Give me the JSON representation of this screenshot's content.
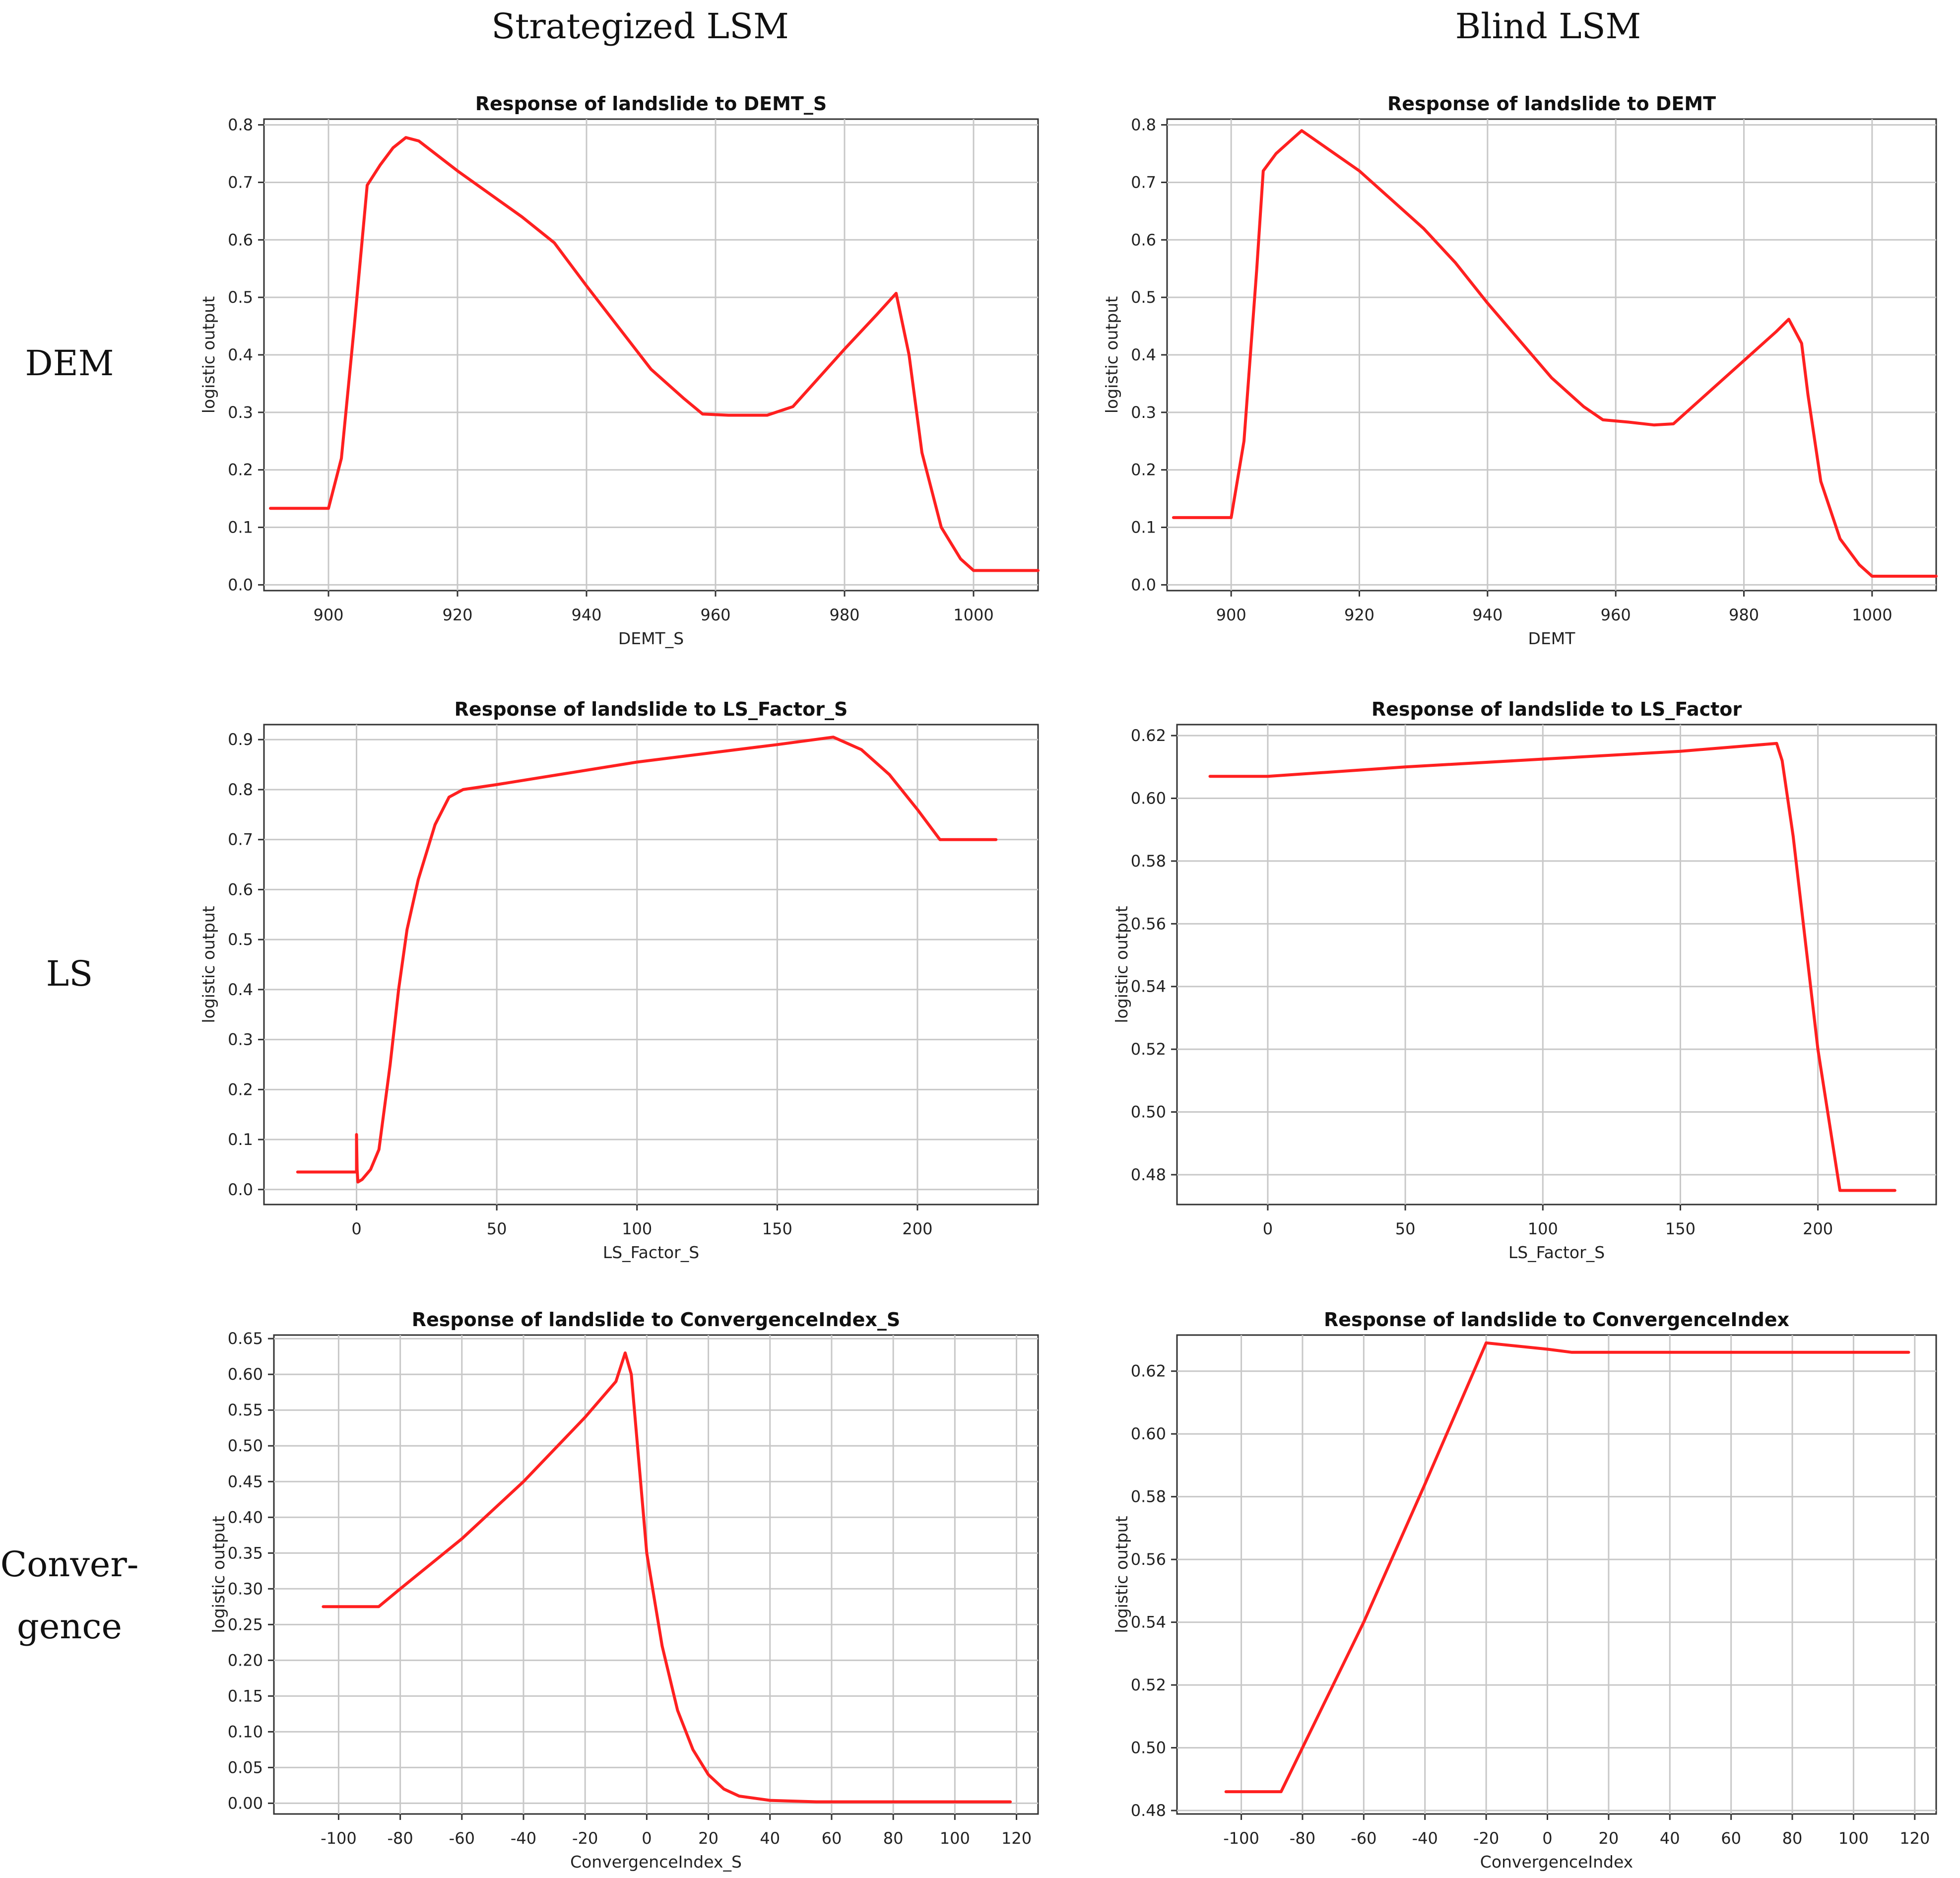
{
  "figure": {
    "column_headers": [
      "Strategized LSM",
      "Blind LSM"
    ],
    "row_labels": [
      "DEM",
      "LS",
      "Conver-\ngence"
    ]
  },
  "style": {
    "line_color": "#ff2020",
    "grid_color": "#c8c8c8",
    "frame_color": "#333333"
  },
  "chart_data": [
    {
      "id": "dem-strategized",
      "type": "line",
      "title": "Response of landslide to DEMT_S",
      "xlabel": "DEMT_S",
      "ylabel": "logistic output",
      "xlim": [
        890,
        1010
      ],
      "ylim": [
        -0.01,
        0.81
      ],
      "xticks": [
        900,
        920,
        940,
        960,
        980,
        1000
      ],
      "yticks": [
        0.0,
        0.1,
        0.2,
        0.3,
        0.4,
        0.5,
        0.6,
        0.7,
        0.8
      ],
      "ytick_decimals": 1,
      "grid": true,
      "series": [
        {
          "name": "response",
          "x": [
            891,
            900,
            902,
            904,
            906,
            908,
            910,
            912,
            914,
            920,
            930,
            935,
            940,
            950,
            955,
            958,
            962,
            968,
            972,
            976,
            980,
            985,
            988,
            990,
            992,
            995,
            998,
            1000,
            1010
          ],
          "y": [
            0.133,
            0.133,
            0.22,
            0.45,
            0.695,
            0.73,
            0.76,
            0.778,
            0.772,
            0.72,
            0.64,
            0.595,
            0.52,
            0.375,
            0.325,
            0.297,
            0.295,
            0.295,
            0.31,
            0.36,
            0.41,
            0.47,
            0.507,
            0.4,
            0.23,
            0.1,
            0.045,
            0.025,
            0.025
          ]
        }
      ]
    },
    {
      "id": "dem-blind",
      "type": "line",
      "title": "Response of landslide to DEMT",
      "xlabel": "DEMT",
      "ylabel": "logistic output",
      "xlim": [
        890,
        1010
      ],
      "ylim": [
        -0.01,
        0.81
      ],
      "xticks": [
        900,
        920,
        940,
        960,
        980,
        1000
      ],
      "yticks": [
        0.0,
        0.1,
        0.2,
        0.3,
        0.4,
        0.5,
        0.6,
        0.7,
        0.8
      ],
      "ytick_decimals": 1,
      "grid": true,
      "series": [
        {
          "name": "response",
          "x": [
            891,
            900,
            902,
            904,
            905,
            907,
            909,
            911,
            920,
            930,
            935,
            940,
            950,
            955,
            958,
            962,
            966,
            969,
            975,
            980,
            985,
            987,
            989,
            990,
            992,
            995,
            998,
            1000,
            1010
          ],
          "y": [
            0.117,
            0.117,
            0.25,
            0.55,
            0.72,
            0.75,
            0.77,
            0.79,
            0.72,
            0.62,
            0.56,
            0.49,
            0.36,
            0.31,
            0.287,
            0.283,
            0.278,
            0.28,
            0.34,
            0.39,
            0.44,
            0.462,
            0.42,
            0.33,
            0.18,
            0.08,
            0.035,
            0.015,
            0.015
          ]
        }
      ]
    },
    {
      "id": "ls-strategized",
      "type": "line",
      "title": "Response of landslide to LS_Factor_S",
      "xlabel": "LS_Factor_S",
      "ylabel": "logistic output",
      "xlim": [
        -33,
        243
      ],
      "ylim": [
        -0.03,
        0.93
      ],
      "xticks": [
        0,
        50,
        100,
        150,
        200
      ],
      "yticks": [
        0.0,
        0.1,
        0.2,
        0.3,
        0.4,
        0.5,
        0.6,
        0.7,
        0.8,
        0.9
      ],
      "ytick_decimals": 1,
      "grid": true,
      "series": [
        {
          "name": "response",
          "x": [
            -21,
            0,
            0,
            0.2,
            0.5,
            2,
            5,
            8,
            12,
            15,
            18,
            22,
            28,
            33,
            38,
            50,
            100,
            150,
            170,
            180,
            190,
            200,
            208,
            228
          ],
          "y": [
            0.035,
            0.035,
            0.11,
            0.04,
            0.015,
            0.02,
            0.04,
            0.08,
            0.25,
            0.4,
            0.52,
            0.62,
            0.73,
            0.785,
            0.8,
            0.81,
            0.855,
            0.89,
            0.905,
            0.88,
            0.83,
            0.76,
            0.7,
            0.7
          ]
        }
      ]
    },
    {
      "id": "ls-blind",
      "type": "line",
      "title": "Response of landslide to LS_Factor",
      "xlabel": "LS_Factor_S",
      "ylabel": "logistic output",
      "xlim": [
        -33,
        243
      ],
      "ylim": [
        0.4705,
        0.6235
      ],
      "xticks": [
        0,
        50,
        100,
        150,
        200
      ],
      "yticks": [
        0.48,
        0.5,
        0.52,
        0.54,
        0.56,
        0.58,
        0.6,
        0.62
      ],
      "ytick_decimals": 2,
      "grid": true,
      "series": [
        {
          "name": "response",
          "x": [
            -21,
            0,
            50,
            100,
            150,
            185,
            187,
            191,
            200,
            208,
            228
          ],
          "y": [
            0.607,
            0.607,
            0.61,
            0.6125,
            0.615,
            0.6175,
            0.612,
            0.588,
            0.52,
            0.475,
            0.475
          ]
        }
      ]
    },
    {
      "id": "conv-strategized",
      "type": "line",
      "title": "Response of landslide to ConvergenceIndex_S",
      "xlabel": "ConvergenceIndex_S",
      "ylabel": "logistic output",
      "xlim": [
        -121,
        127
      ],
      "ylim": [
        -0.015,
        0.655
      ],
      "xticks": [
        -100,
        -80,
        -60,
        -40,
        -20,
        0,
        20,
        40,
        60,
        80,
        100,
        120
      ],
      "yticks": [
        0.0,
        0.05,
        0.1,
        0.15,
        0.2,
        0.25,
        0.3,
        0.35,
        0.4,
        0.45,
        0.5,
        0.55,
        0.6,
        0.65
      ],
      "ytick_decimals": 2,
      "grid": true,
      "series": [
        {
          "name": "response",
          "x": [
            -105,
            -87,
            -80,
            -60,
            -40,
            -20,
            -10,
            -7,
            -5,
            -2,
            0,
            5,
            10,
            15,
            20,
            25,
            30,
            40,
            55,
            118
          ],
          "y": [
            0.275,
            0.275,
            0.3,
            0.37,
            0.45,
            0.54,
            0.59,
            0.63,
            0.6,
            0.45,
            0.35,
            0.22,
            0.13,
            0.075,
            0.04,
            0.02,
            0.01,
            0.004,
            0.002,
            0.002
          ]
        }
      ]
    },
    {
      "id": "conv-blind",
      "type": "line",
      "title": "Response of landslide to ConvergenceIndex",
      "xlabel": "ConvergenceIndex",
      "ylabel": "logistic output",
      "xlim": [
        -121,
        127
      ],
      "ylim": [
        0.4789,
        0.6315
      ],
      "xticks": [
        -100,
        -80,
        -60,
        -40,
        -20,
        0,
        20,
        40,
        60,
        80,
        100,
        120
      ],
      "yticks": [
        0.48,
        0.5,
        0.52,
        0.54,
        0.56,
        0.58,
        0.6,
        0.62
      ],
      "ytick_decimals": 2,
      "grid": true,
      "series": [
        {
          "name": "response",
          "x": [
            -105,
            -87,
            -80,
            -60,
            -40,
            -20,
            0,
            8,
            118
          ],
          "y": [
            0.486,
            0.486,
            0.5,
            0.54,
            0.584,
            0.629,
            0.627,
            0.626,
            0.626
          ]
        }
      ]
    }
  ]
}
